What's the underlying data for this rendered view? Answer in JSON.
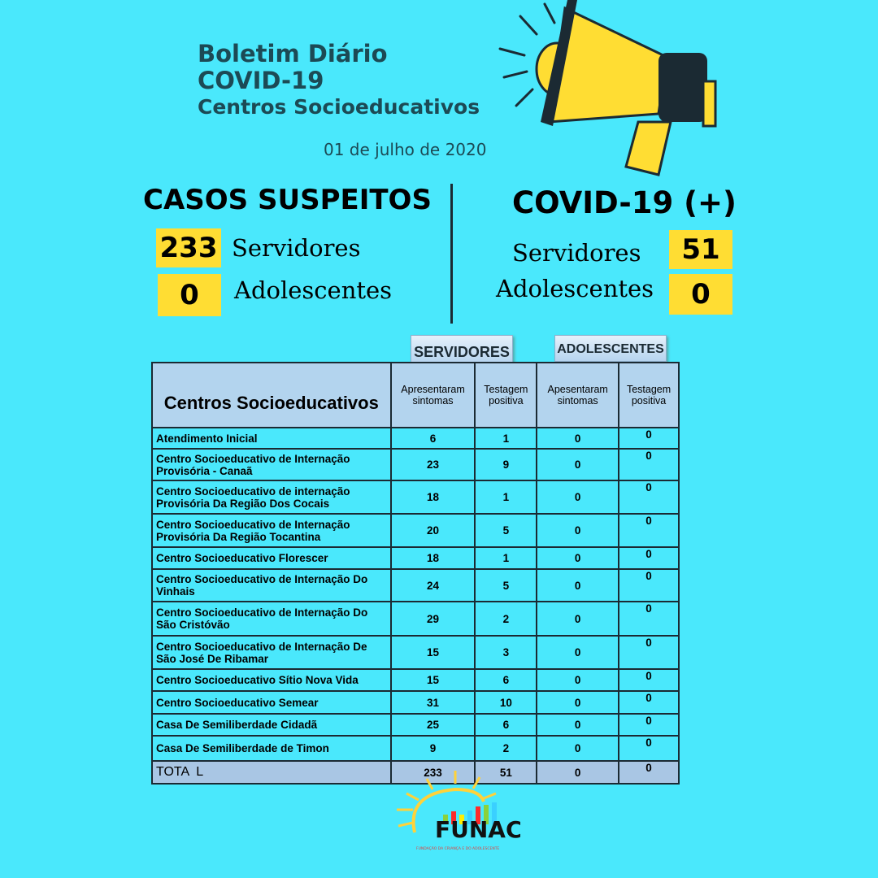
{
  "header": {
    "title1": "Boletim Diário",
    "title2": "COVID-19",
    "title3": "Centros Socioeducativos",
    "date": "01 de julho de 2020",
    "icon": "megaphone-icon"
  },
  "suspects": {
    "title": "CASOS SUSPEITOS",
    "servidores_value": "233",
    "servidores_label": "Servidores",
    "adolescentes_value": "0",
    "adolescentes_label": "Adolescentes"
  },
  "positive": {
    "title": "COVID-19 (+)",
    "servidores_value": "51",
    "servidores_label": "Servidores",
    "adolescentes_value": "0",
    "adolescentes_label": "Adolescentes"
  },
  "table": {
    "group_servidores": "SERVIDORES",
    "group_adolescentes": "ADOLESCENTES",
    "headers": [
      "Centros Socioeducativos",
      "Apresentaram sintomas",
      "Testagem positiva",
      "Apesentaram sintomas",
      "Testagem positiva"
    ],
    "rows": [
      [
        "Atendimento Inicial",
        "6",
        "1",
        "0",
        "0"
      ],
      [
        "Centro Socioeducativo de Internação Provisória - Canaã",
        "23",
        "9",
        "0",
        "0"
      ],
      [
        "Centro Socioeducativo de internação Provisória Da Região Dos Cocais",
        "18",
        "1",
        "0",
        "0"
      ],
      [
        "Centro Socioeducativo de Internação Provisória Da Região Tocantina",
        "20",
        "5",
        "0",
        "0"
      ],
      [
        "Centro Socioeducativo Florescer",
        "18",
        "1",
        "0",
        "0"
      ],
      [
        "Centro Socioeducativo de Internação Do Vinhais",
        "24",
        "5",
        "0",
        "0"
      ],
      [
        "Centro Socioeducativo de Internação Do São Cristóvão",
        "29",
        "2",
        "0",
        "0"
      ],
      [
        "Centro Socioeducativo de Internação De São José De Ribamar",
        "15",
        "3",
        "0",
        "0"
      ],
      [
        "Centro Socioeducativo Sítio Nova Vida",
        "15",
        "6",
        "0",
        "0"
      ],
      [
        "Centro Socioeducativo Semear",
        "31",
        "10",
        "0",
        "0"
      ],
      [
        "Casa De Semiliberdade Cidadã",
        "25",
        "6",
        "0",
        "0"
      ],
      [
        "Casa De Semiliberdade de Timon",
        "9",
        "2",
        "0",
        "0"
      ]
    ],
    "total": [
      "TOTA  L",
      "233",
      "51",
      "0",
      "0"
    ]
  },
  "logo": {
    "text": "FUNAC",
    "subtitle": "FUNDAÇÃO DA CRIANÇA E DO ADOLESCENTE"
  },
  "colors": {
    "background": "#4ae8fc",
    "highlight": "#ffdd33",
    "header_fill": "#b3d4ee"
  }
}
